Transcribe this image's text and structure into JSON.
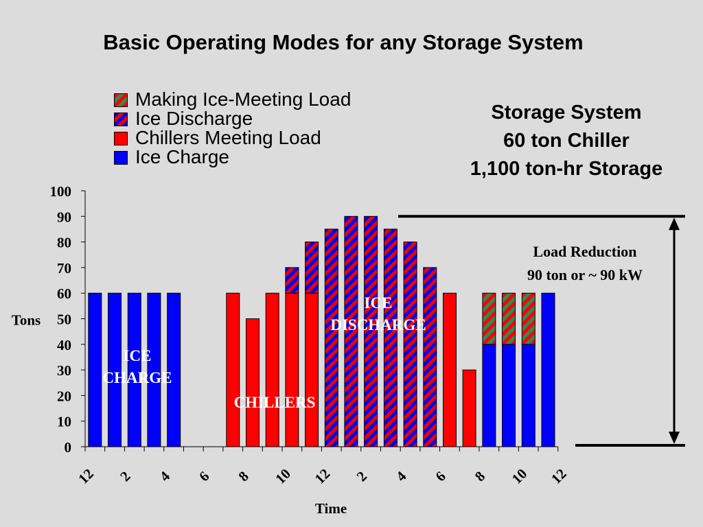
{
  "slide": {
    "title": "Basic Operating Modes for any Storage System",
    "system_lines": [
      "Storage System",
      "60 ton Chiller",
      "1,100 ton-hr Storage"
    ]
  },
  "legend": {
    "items": [
      {
        "label": "Making Ice-Meeting Load",
        "pattern": "green-red-hatch"
      },
      {
        "label": "Ice Discharge",
        "pattern": "blue-red-hatch"
      },
      {
        "label": "Chillers Meeting Load",
        "pattern": "solid-red"
      },
      {
        "label": "Ice Charge",
        "pattern": "solid-blue"
      }
    ]
  },
  "colors": {
    "background": "#dcdcdc",
    "ice_charge": "#0000ff",
    "chillers": "#ff0000",
    "ice_discharge_a": "#0000ee",
    "ice_discharge_b": "#ee0000",
    "making_ice_a": "#ff0000",
    "making_ice_b": "#2e8b57"
  },
  "chart_data": {
    "type": "bar",
    "stacked": true,
    "title": "",
    "xlabel": "Time",
    "ylabel": "Tons",
    "ylim": [
      0,
      100
    ],
    "yticks": [
      0,
      10,
      20,
      30,
      40,
      50,
      60,
      70,
      80,
      90,
      100
    ],
    "xtick_labels": [
      "12",
      "2",
      "4",
      "6",
      "8",
      "10",
      "12",
      "2",
      "4",
      "6",
      "8",
      "10",
      "12"
    ],
    "categories": [
      "12-1",
      "1-2",
      "2-3",
      "3-4",
      "4-5",
      "5-6",
      "6-7",
      "7-8",
      "8-9",
      "9-10",
      "10-11",
      "11-12",
      "12-1",
      "1-2",
      "2-3",
      "3-4",
      "4-5",
      "5-6",
      "6-7",
      "7-8",
      "8-9",
      "9-10",
      "10-11",
      "11-12"
    ],
    "series": [
      {
        "name": "Ice Charge",
        "values": [
          60,
          60,
          60,
          60,
          60,
          0,
          0,
          0,
          0,
          0,
          0,
          0,
          0,
          0,
          0,
          0,
          0,
          0,
          0,
          0,
          40,
          40,
          40,
          60
        ]
      },
      {
        "name": "Chillers Meeting Load",
        "values": [
          0,
          0,
          0,
          0,
          0,
          0,
          0,
          60,
          50,
          60,
          60,
          60,
          0,
          0,
          0,
          0,
          0,
          0,
          60,
          30,
          0,
          0,
          0,
          0
        ]
      },
      {
        "name": "Ice Discharge",
        "values": [
          0,
          0,
          0,
          0,
          0,
          0,
          0,
          0,
          0,
          0,
          10,
          20,
          85,
          90,
          90,
          85,
          80,
          70,
          0,
          0,
          0,
          0,
          0,
          0
        ]
      },
      {
        "name": "Making Ice-Meeting Load",
        "values": [
          0,
          0,
          0,
          0,
          0,
          0,
          0,
          0,
          0,
          0,
          0,
          0,
          0,
          0,
          0,
          0,
          0,
          0,
          0,
          0,
          20,
          20,
          20,
          0
        ]
      }
    ],
    "annotations": [
      {
        "text": "ICE CHARGE",
        "lines": [
          "ICE",
          "CHARGE"
        ],
        "color": "#ffffff"
      },
      {
        "text": "CHILLERS",
        "lines": [
          "CHILLERS"
        ],
        "color": "#ffffff"
      },
      {
        "text": "ICE DISCHARGE",
        "lines": [
          "ICE",
          "DISCHARGE"
        ],
        "color": "#ffffff"
      },
      {
        "text": "Load Reduction 90 ton or ~ 90 kW",
        "lines": [
          "Load Reduction",
          "90 ton or ~ 90 kW"
        ],
        "color": "#000000"
      }
    ]
  }
}
